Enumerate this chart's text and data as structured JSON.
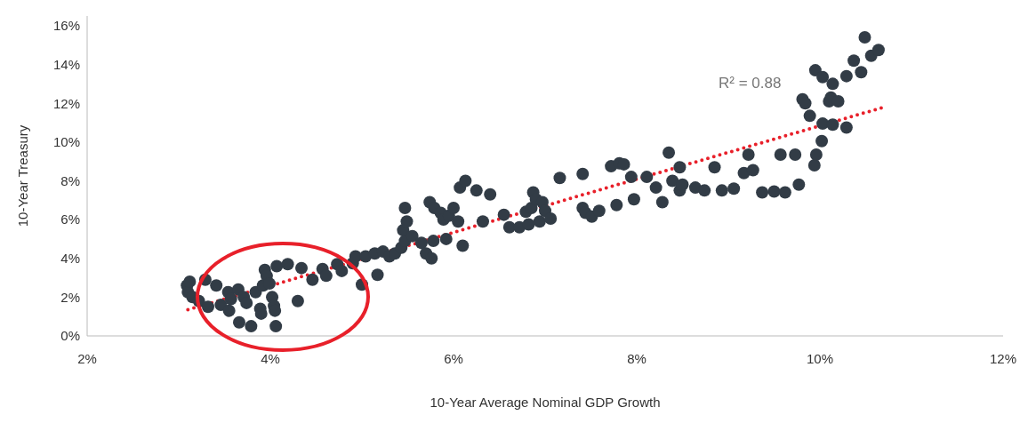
{
  "chart_data": {
    "type": "scatter",
    "xlabel": "10-Year Average Nominal GDP Growth",
    "ylabel": "10-Year Treasury",
    "annotations": [
      "R² = 0.88"
    ],
    "xlim": [
      2,
      12
    ],
    "xticks": [
      {
        "value": 2,
        "label": "2%"
      },
      {
        "value": 4,
        "label": "4%"
      },
      {
        "value": 6,
        "label": "6%"
      },
      {
        "value": 8,
        "label": "8%"
      },
      {
        "value": 10,
        "label": "10%"
      },
      {
        "value": 12,
        "label": "12%"
      }
    ],
    "ylim": [
      0,
      16.5
    ],
    "yticks": [
      {
        "value": 0,
        "label": "0%"
      },
      {
        "value": 2,
        "label": "2%"
      },
      {
        "value": 4,
        "label": "4%"
      },
      {
        "value": 6,
        "label": "6%"
      },
      {
        "value": 8,
        "label": "8%"
      },
      {
        "value": 10,
        "label": "10%"
      },
      {
        "value": 12,
        "label": "12%"
      },
      {
        "value": 14,
        "label": "14%"
      },
      {
        "value": 16,
        "label": "16%"
      }
    ],
    "grid": false,
    "legend": false,
    "marker": "circle",
    "series": [
      {
        "color": "#323c46",
        "x": [
          3.09,
          3.1,
          3.12,
          3.15,
          3.22,
          3.29,
          3.32,
          3.41,
          3.46,
          3.54,
          3.55,
          3.57,
          3.65,
          3.71,
          3.74,
          3.66,
          3.79,
          3.84,
          3.89,
          3.92,
          3.94,
          3.96,
          3.99,
          4.02,
          4.04,
          4.05,
          4.06,
          3.9,
          4.07,
          4.19,
          4.3,
          4.34,
          4.46,
          4.57,
          4.61,
          4.73,
          4.78,
          4.9,
          5.0,
          4.93,
          5.04,
          5.14,
          5.23,
          5.3,
          5.36,
          5.17,
          5.43,
          5.47,
          5.45,
          5.47,
          5.49,
          5.55,
          5.65,
          5.7,
          5.76,
          5.78,
          5.74,
          5.79,
          5.86,
          5.89,
          5.92,
          5.95,
          6.0,
          6.05,
          6.1,
          6.07,
          6.13,
          6.25,
          6.4,
          6.32,
          6.55,
          6.61,
          6.72,
          6.82,
          6.79,
          6.85,
          6.87,
          6.9,
          6.97,
          7.0,
          6.94,
          7.06,
          7.16,
          7.41,
          7.44,
          7.51,
          7.59,
          7.41,
          7.72,
          7.81,
          7.86,
          7.94,
          7.78,
          7.97,
          8.11,
          8.21,
          8.28,
          8.35,
          8.47,
          8.39,
          8.47,
          8.5,
          8.64,
          8.74,
          8.85,
          8.93,
          9.06,
          9.17,
          9.27,
          9.22,
          9.37,
          9.5,
          9.57,
          9.62,
          9.73,
          9.77,
          9.94,
          9.81,
          9.84,
          9.89,
          9.95,
          10.03,
          9.96,
          10.02,
          10.03,
          10.12,
          10.1,
          10.14,
          10.29,
          10.14,
          10.29,
          10.37,
          10.45,
          10.2,
          10.49,
          10.56,
          10.64
        ],
        "values": [
          2.6,
          2.26,
          2.8,
          2.0,
          1.8,
          2.9,
          1.5,
          2.6,
          1.6,
          2.26,
          1.3,
          1.9,
          2.4,
          2.0,
          1.7,
          0.7,
          0.5,
          2.26,
          1.4,
          2.6,
          3.4,
          3.1,
          2.7,
          2.0,
          1.55,
          1.3,
          0.5,
          1.15,
          3.6,
          3.7,
          1.8,
          3.5,
          2.9,
          3.45,
          3.1,
          3.7,
          3.35,
          3.75,
          2.65,
          4.1,
          4.1,
          4.25,
          4.35,
          4.1,
          4.25,
          3.15,
          4.55,
          4.9,
          5.45,
          6.6,
          5.9,
          5.15,
          4.8,
          4.25,
          4.0,
          4.9,
          6.9,
          6.6,
          6.35,
          6.0,
          5.0,
          6.2,
          6.6,
          5.9,
          4.65,
          7.65,
          8.0,
          7.5,
          7.3,
          5.9,
          6.25,
          5.6,
          5.6,
          5.75,
          6.4,
          6.6,
          7.4,
          7.05,
          6.9,
          6.45,
          5.9,
          6.05,
          8.15,
          6.6,
          6.35,
          6.15,
          6.45,
          8.35,
          8.75,
          8.9,
          8.85,
          8.2,
          6.75,
          7.05,
          8.2,
          7.65,
          6.9,
          9.45,
          8.7,
          8.0,
          7.5,
          7.8,
          7.65,
          7.5,
          8.7,
          7.5,
          7.6,
          8.4,
          8.55,
          9.35,
          7.4,
          7.45,
          9.35,
          7.4,
          9.35,
          7.8,
          8.8,
          12.2,
          12.0,
          11.35,
          13.7,
          13.35,
          9.35,
          10.05,
          10.95,
          12.3,
          12.1,
          10.9,
          10.75,
          13.0,
          13.4,
          14.2,
          13.6,
          12.1,
          15.4,
          14.45,
          14.75
        ]
      },
      {
        "type": "line",
        "color": "#e8202a",
        "line_style": "dotted",
        "marker": "none",
        "x": [
          3.1,
          10.7
        ],
        "values": [
          1.35,
          11.8
        ]
      }
    ]
  }
}
